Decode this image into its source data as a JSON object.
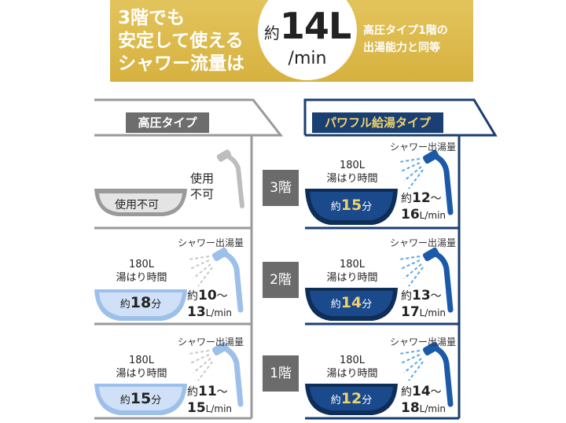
{
  "banner": {
    "headline_lines": [
      "3階でも",
      "安定して使える",
      "シャワー流量は"
    ],
    "flow_prefix": "約",
    "flow_value": "14L",
    "flow_unit": "/min",
    "note_lines": [
      "高圧タイプ1階の",
      "出湯能力と同等"
    ]
  },
  "colors": {
    "gold": "#d9b445",
    "navy": "#1a3f72",
    "gray": "#6b6b6b",
    "light_blue": "#b5cdf0"
  },
  "left_house": {
    "label": "高圧タイプ",
    "floor3": {
      "bowl_label": "使用不可",
      "status_lines": [
        "使用",
        "不可"
      ],
      "icon": "shower-head-icon"
    },
    "floor2": {
      "shower_label": "シャワー出湯量",
      "capacity": "180L",
      "fill_label": "湯はり時間",
      "prefix": "約",
      "minutes": "18",
      "min_unit": "分",
      "rate_min": "10",
      "tilde": "〜",
      "rate_max": "13",
      "rate_unit": "L/min"
    },
    "floor1": {
      "shower_label": "シャワー出湯量",
      "capacity": "180L",
      "fill_label": "湯はり時間",
      "prefix": "約",
      "minutes": "15",
      "min_unit": "分",
      "rate_min": "11",
      "tilde": "〜",
      "rate_max": "15",
      "rate_unit": "L/min"
    }
  },
  "floors": [
    "3階",
    "2階",
    "1階"
  ],
  "right_house": {
    "label": "パワフル給湯タイプ",
    "floor3": {
      "shower_label": "シャワー出湯量",
      "capacity": "180L",
      "fill_label": "湯はり時間",
      "prefix": "約",
      "minutes": "15",
      "min_unit": "分",
      "rate_min": "12",
      "tilde": "〜",
      "rate_max": "16",
      "rate_unit": "L/min"
    },
    "floor2": {
      "shower_label": "シャワー出湯量",
      "capacity": "180L",
      "fill_label": "湯はり時間",
      "prefix": "約",
      "minutes": "14",
      "min_unit": "分",
      "rate_min": "13",
      "tilde": "〜",
      "rate_max": "17",
      "rate_unit": "L/min"
    },
    "floor1": {
      "shower_label": "シャワー出湯量",
      "capacity": "180L",
      "fill_label": "湯はり時間",
      "prefix": "約",
      "minutes": "12",
      "min_unit": "分",
      "rate_min": "14",
      "tilde": "〜",
      "rate_max": "18",
      "rate_unit": "L/min"
    }
  }
}
